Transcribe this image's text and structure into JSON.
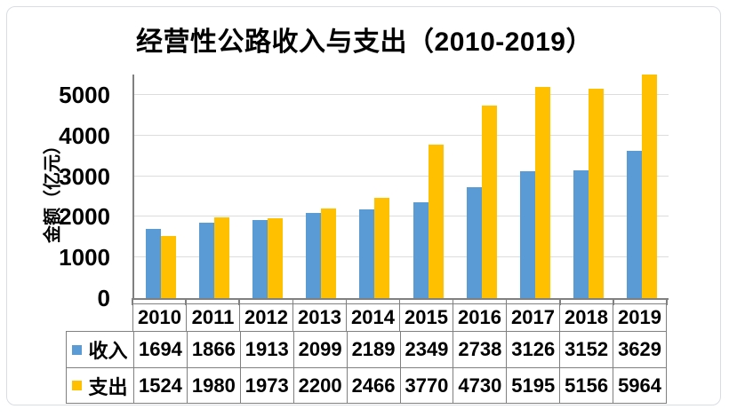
{
  "chart_data": {
    "type": "bar",
    "title": "经营性公路收入与支出（2010-2019）",
    "xlabel": "",
    "ylabel": "金额（亿元）",
    "categories": [
      "2010",
      "2011",
      "2012",
      "2013",
      "2014",
      "2015",
      "2016",
      "2017",
      "2018",
      "2019"
    ],
    "series": [
      {
        "id": "income",
        "name": "收入",
        "color": "#5B9BD5",
        "values": [
          1694,
          1866,
          1913,
          2099,
          2189,
          2349,
          2738,
          3126,
          3152,
          3629
        ]
      },
      {
        "id": "expense",
        "name": "支出",
        "color": "#FFC000",
        "values": [
          1524,
          1980,
          1973,
          2200,
          2466,
          3770,
          4730,
          5195,
          5156,
          5964
        ]
      }
    ],
    "ylim": [
      0,
      5500
    ],
    "yticks": [
      0,
      1000,
      2000,
      3000,
      4000,
      5000
    ],
    "grid": true,
    "legend_position": "data-table-left",
    "note_overflow": "2019 支出 bar is clipped at plot top"
  },
  "colors": {
    "income": "#5B9BD5",
    "expense": "#FFC000",
    "gridline": "#dcdcdc",
    "axis": "#808080",
    "table_border": "#808080",
    "frame_border": "#d9dde3",
    "text": "#000000",
    "background": "#ffffff"
  }
}
